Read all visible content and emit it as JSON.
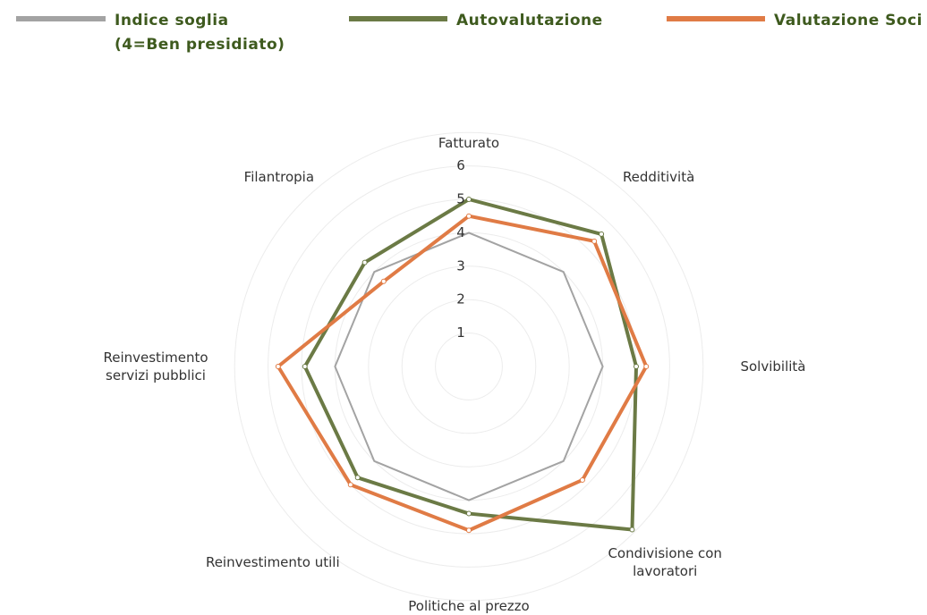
{
  "chart_data": {
    "type": "radar",
    "categories": [
      "Fatturato",
      "Redditività",
      "Solvibilità",
      "Condivisione con lavoratori",
      "Politiche al prezzo",
      "Reinvestimento utili",
      "Reinvestimento servizi pubblici",
      "Filantropia"
    ],
    "series": [
      {
        "name": "Indice soglia (4=Ben presidiato)",
        "color": "#a3a3a3",
        "values": [
          4,
          4,
          4,
          4,
          4,
          4,
          4,
          4
        ]
      },
      {
        "name": "Autovalutazione",
        "color": "#6b7a45",
        "values": [
          5.0,
          5.6,
          5.0,
          6.9,
          4.4,
          4.7,
          4.9,
          4.4
        ]
      },
      {
        "name": "Valutazione Soci",
        "color": "#e07b45",
        "values": [
          4.5,
          5.3,
          5.3,
          4.8,
          4.9,
          5.0,
          5.7,
          3.6
        ]
      }
    ],
    "rlim": [
      0,
      7
    ],
    "rticks": [
      1,
      2,
      3,
      4,
      5,
      6
    ],
    "grid": true
  }
}
